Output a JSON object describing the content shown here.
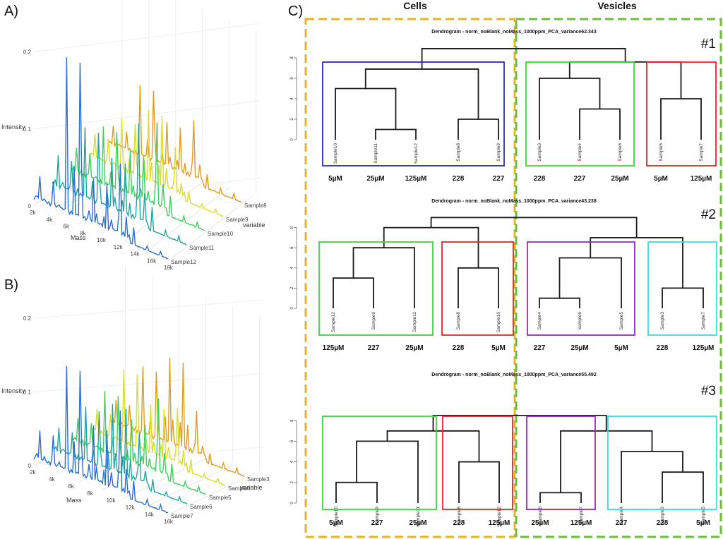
{
  "panel_labels": {
    "a": "A)",
    "b": "B)",
    "c": "C)"
  },
  "column_headers": {
    "cells": "Cells",
    "vesicles": "Vesicles"
  },
  "colors": {
    "cells_box": "#e9b22b",
    "vesicles_box": "#6cbf3a",
    "blue": "#2b2fa6",
    "green": "#3bd63b",
    "red": "#e3262b",
    "purple": "#9b27c9",
    "cyan": "#36dde0",
    "tree": "#1a1a1a"
  },
  "chart_data": [
    {
      "type": "line",
      "panel": "A)",
      "kind": "3d-waterfall",
      "zlabel": "Intensity",
      "xlabel": "Mass",
      "ylabel": "variable",
      "z_ticks": [
        "0",
        "0.1",
        "0.2"
      ],
      "x_ticks": [
        "2k",
        "4k",
        "6k",
        "8k",
        "10k",
        "12k",
        "14k",
        "16k",
        "18k"
      ],
      "series": [
        {
          "name": "Sample12",
          "color": "#2a6fd1",
          "peaks": [
            0.05,
            0.25,
            0.08,
            0.12,
            0.04
          ]
        },
        {
          "name": "Sample11",
          "color": "#1fa79a",
          "peaks": [
            0.06,
            0.12,
            0.09,
            0.16,
            0.05
          ]
        },
        {
          "name": "Sample10",
          "color": "#3fd15e",
          "peaks": [
            0.05,
            0.1,
            0.08,
            0.14,
            0.05
          ]
        },
        {
          "name": "Sample9",
          "color": "#d8de2a",
          "peaks": [
            0.05,
            0.09,
            0.12,
            0.08,
            0.04
          ]
        },
        {
          "name": "Sample8",
          "color": "#e79a1e",
          "peaks": [
            0.04,
            0.12,
            0.08,
            0.1,
            0.05
          ]
        }
      ]
    },
    {
      "type": "line",
      "panel": "B)",
      "kind": "3d-waterfall",
      "zlabel": "Intensity",
      "xlabel": "Mass",
      "ylabel": "variable",
      "z_ticks": [
        "0",
        "0.1",
        "0.2"
      ],
      "x_ticks": [
        "2k",
        "4k",
        "6k",
        "8k",
        "10k",
        "12k",
        "14k",
        "16k"
      ],
      "series": [
        {
          "name": "Sample7",
          "color": "#2a6fd1",
          "peaks": [
            0.06,
            0.18,
            0.1,
            0.14,
            0.05
          ]
        },
        {
          "name": "Sample6",
          "color": "#1fa79a",
          "peaks": [
            0.05,
            0.1,
            0.12,
            0.09,
            0.04
          ]
        },
        {
          "name": "Sample5",
          "color": "#3fd15e",
          "peaks": [
            0.05,
            0.11,
            0.08,
            0.13,
            0.05
          ]
        },
        {
          "name": "Sample4",
          "color": "#d8de2a",
          "peaks": [
            0.05,
            0.13,
            0.09,
            0.1,
            0.04
          ]
        },
        {
          "name": "Sample3",
          "color": "#e79a1e",
          "peaks": [
            0.05,
            0.12,
            0.15,
            0.08,
            0.05
          ]
        }
      ]
    },
    {
      "type": "dendrogram",
      "tag": "#1",
      "title": "Dendrogram - norm_noBlank_noMass_1000ppm_PCA_variance62.343",
      "y_ticks": [
        "0",
        "2",
        "4",
        "6",
        "8"
      ],
      "leaves": [
        {
          "name": "Sample10",
          "cond": "5µM"
        },
        {
          "name": "Sample11",
          "cond": "25µM"
        },
        {
          "name": "Sample12",
          "cond": "125µM"
        },
        {
          "name": "Sample8",
          "cond": "228"
        },
        {
          "name": "Sample9",
          "cond": "227"
        },
        {
          "name": "Sample3",
          "cond": "228"
        },
        {
          "name": "Sample4",
          "cond": "227"
        },
        {
          "name": "Sample6",
          "cond": "25µM"
        },
        {
          "name": "Sample5",
          "cond": "5µM"
        },
        {
          "name": "Sample7",
          "cond": "125µM"
        }
      ],
      "merges": [
        [
          1,
          2,
          1.0
        ],
        [
          3,
          4,
          2.0
        ],
        [
          0,
          10,
          5.0
        ],
        [
          12,
          11,
          6.9
        ],
        [
          6,
          7,
          3.0
        ],
        [
          5,
          14,
          6.0
        ],
        [
          8,
          9,
          4.0
        ],
        [
          15,
          16,
          7.6
        ],
        [
          13,
          17,
          8.9
        ]
      ],
      "groups": [
        {
          "from": 0,
          "to": 4,
          "color": "#2b2fa6"
        },
        {
          "from": 5,
          "to": 7,
          "color": "#3bd63b"
        },
        {
          "from": 8,
          "to": 9,
          "color": "#e3262b"
        }
      ]
    },
    {
      "type": "dendrogram",
      "tag": "#2",
      "title": "Dendrogram - norm_noBlank_noMass_1000ppm_PCA_variance43.238",
      "y_ticks": [
        "0",
        "2",
        "4",
        "6",
        "8"
      ],
      "leaves": [
        {
          "name": "Sample12",
          "cond": "125µM"
        },
        {
          "name": "Sample9",
          "cond": "227"
        },
        {
          "name": "Sample11",
          "cond": "25µM"
        },
        {
          "name": "Sample8",
          "cond": "228"
        },
        {
          "name": "Sample10",
          "cond": "5µM"
        },
        {
          "name": "Sample4",
          "cond": "227"
        },
        {
          "name": "Sample6",
          "cond": "25µM"
        },
        {
          "name": "Sample5",
          "cond": "5µM"
        },
        {
          "name": "Sample3",
          "cond": "228"
        },
        {
          "name": "Sample7",
          "cond": "125µM"
        }
      ],
      "merges": [
        [
          0,
          1,
          3.0
        ],
        [
          10,
          2,
          6.0
        ],
        [
          3,
          4,
          4.0
        ],
        [
          11,
          12,
          8.0
        ],
        [
          5,
          6,
          1.0
        ],
        [
          14,
          7,
          5.0
        ],
        [
          8,
          9,
          2.0
        ],
        [
          15,
          16,
          7.0
        ],
        [
          13,
          17,
          9.0
        ]
      ],
      "groups": [
        {
          "from": 0,
          "to": 2,
          "color": "#3bd63b"
        },
        {
          "from": 3,
          "to": 4,
          "color": "#e3262b"
        },
        {
          "from": 5,
          "to": 7,
          "color": "#9b27c9"
        },
        {
          "from": 8,
          "to": 9,
          "color": "#36dde0"
        }
      ]
    },
    {
      "type": "dendrogram",
      "tag": "#3",
      "title": "Dendrogram - norm_noBlank_noMass_1000ppm_PCA_variance55.492",
      "y_ticks": [
        "0",
        "2",
        "4",
        "6",
        "8"
      ],
      "leaves": [
        {
          "name": "Sample10",
          "cond": "5µM"
        },
        {
          "name": "Sample9",
          "cond": "227"
        },
        {
          "name": "Sample11",
          "cond": "25µM"
        },
        {
          "name": "Sample8",
          "cond": "228"
        },
        {
          "name": "Sample12",
          "cond": "125µM"
        },
        {
          "name": "Sample6",
          "cond": "25µM"
        },
        {
          "name": "Sample7",
          "cond": "125µM"
        },
        {
          "name": "Sample4",
          "cond": "227"
        },
        {
          "name": "Sample3",
          "cond": "228"
        },
        {
          "name": "Sample5",
          "cond": "5µM"
        }
      ],
      "merges": [
        [
          0,
          1,
          2.0
        ],
        [
          10,
          2,
          6.0
        ],
        [
          3,
          4,
          4.0
        ],
        [
          11,
          12,
          7.0
        ],
        [
          5,
          6,
          1.0
        ],
        [
          8,
          9,
          3.0
        ],
        [
          7,
          15,
          5.0
        ],
        [
          14,
          16,
          7.0
        ],
        [
          13,
          17,
          8.5
        ]
      ],
      "groups": [
        {
          "from": 0,
          "to": 2,
          "color": "#3bd63b"
        },
        {
          "from": 3,
          "to": 4,
          "color": "#e3262b"
        },
        {
          "from": 5,
          "to": 6,
          "color": "#9b27c9"
        },
        {
          "from": 7,
          "to": 9,
          "color": "#36dde0"
        }
      ]
    }
  ]
}
